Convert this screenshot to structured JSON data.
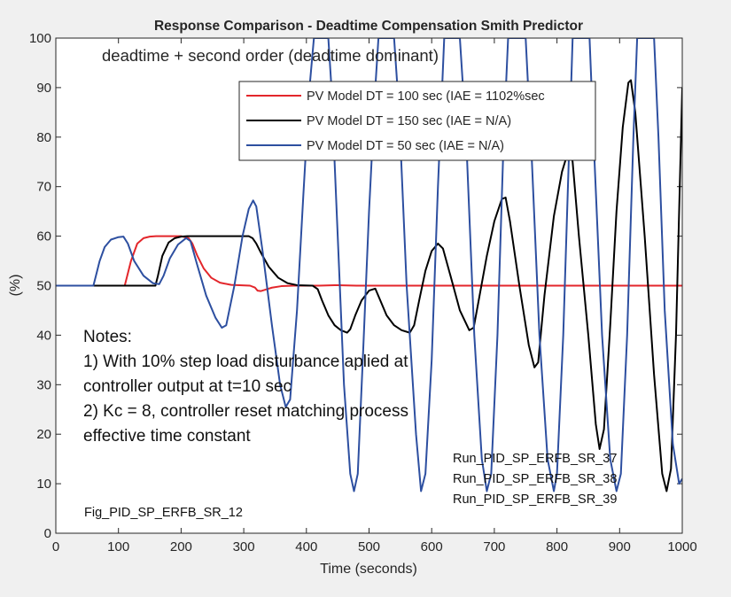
{
  "chart_data": {
    "type": "line",
    "title": "Response Comparison - Deadtime Compensation Smith Predictor",
    "subtitle": "deadtime + second order (deadtime dominant)",
    "xlabel": "Time (seconds)",
    "ylabel": "(%)",
    "xlim": [
      0,
      1000
    ],
    "ylim": [
      0,
      100
    ],
    "xticks": [
      0,
      100,
      200,
      300,
      400,
      500,
      600,
      700,
      800,
      900,
      1000
    ],
    "yticks": [
      0,
      10,
      20,
      30,
      40,
      50,
      60,
      70,
      80,
      90,
      100
    ],
    "legend_position": "top-right",
    "series": [
      {
        "name": "PV Model DT = 100 sec (IAE = 1102%sec",
        "color": "#e3262b",
        "points": [
          [
            0,
            50
          ],
          [
            110,
            50
          ],
          [
            114,
            52
          ],
          [
            120,
            55
          ],
          [
            130,
            58.5
          ],
          [
            140,
            59.6
          ],
          [
            150,
            59.9
          ],
          [
            160,
            60
          ],
          [
            200,
            60
          ],
          [
            212,
            59.6
          ],
          [
            218,
            58.5
          ],
          [
            226,
            56
          ],
          [
            236,
            53.5
          ],
          [
            248,
            51.6
          ],
          [
            262,
            50.6
          ],
          [
            280,
            50.15
          ],
          [
            310,
            50
          ],
          [
            318,
            49.6
          ],
          [
            322,
            49
          ],
          [
            327,
            48.9
          ],
          [
            335,
            49.2
          ],
          [
            345,
            49.6
          ],
          [
            360,
            49.9
          ],
          [
            380,
            50
          ],
          [
            420,
            50
          ],
          [
            445,
            50.1
          ],
          [
            480,
            50
          ],
          [
            1000,
            50
          ]
        ]
      },
      {
        "name": "PV Model DT = 150 sec (IAE = N/A)",
        "color": "#000000",
        "points": [
          [
            0,
            50
          ],
          [
            159,
            50
          ],
          [
            163,
            52
          ],
          [
            170,
            56
          ],
          [
            180,
            58.7
          ],
          [
            190,
            59.6
          ],
          [
            200,
            59.9
          ],
          [
            210,
            60
          ],
          [
            308,
            60
          ],
          [
            314,
            59.6
          ],
          [
            320,
            58.5
          ],
          [
            328,
            56.5
          ],
          [
            340,
            53.8
          ],
          [
            355,
            51.6
          ],
          [
            370,
            50.5
          ],
          [
            385,
            50.1
          ],
          [
            410,
            50
          ],
          [
            418,
            49.3
          ],
          [
            425,
            47
          ],
          [
            435,
            44
          ],
          [
            445,
            42
          ],
          [
            455,
            41
          ],
          [
            465,
            40.5
          ],
          [
            470,
            41.2
          ],
          [
            478,
            44
          ],
          [
            488,
            47
          ],
          [
            500,
            49
          ],
          [
            510,
            49.4
          ],
          [
            518,
            47
          ],
          [
            528,
            44
          ],
          [
            540,
            42
          ],
          [
            552,
            41
          ],
          [
            565,
            40.5
          ],
          [
            572,
            42
          ],
          [
            580,
            47
          ],
          [
            590,
            53
          ],
          [
            600,
            57
          ],
          [
            610,
            58.5
          ],
          [
            618,
            57.5
          ],
          [
            630,
            52
          ],
          [
            645,
            45
          ],
          [
            660,
            41
          ],
          [
            667,
            41.5
          ],
          [
            675,
            47
          ],
          [
            688,
            56
          ],
          [
            700,
            63
          ],
          [
            712,
            67.5
          ],
          [
            718,
            67.8
          ],
          [
            725,
            63
          ],
          [
            740,
            50
          ],
          [
            755,
            38
          ],
          [
            764,
            33.5
          ],
          [
            770,
            34.5
          ],
          [
            780,
            48
          ],
          [
            795,
            64
          ],
          [
            808,
            73
          ],
          [
            820,
            78
          ],
          [
            825,
            75
          ],
          [
            835,
            60
          ],
          [
            850,
            40
          ],
          [
            862,
            22
          ],
          [
            868,
            17
          ],
          [
            875,
            21
          ],
          [
            885,
            42
          ],
          [
            895,
            65
          ],
          [
            905,
            82
          ],
          [
            914,
            91
          ],
          [
            918,
            91.5
          ],
          [
            925,
            85
          ],
          [
            940,
            60
          ],
          [
            955,
            32
          ],
          [
            968,
            12
          ],
          [
            975,
            8.5
          ],
          [
            982,
            13
          ],
          [
            990,
            40
          ],
          [
            996,
            70
          ],
          [
            1000,
            90
          ]
        ]
      },
      {
        "name": "PV Model DT = 50 sec (IAE = N/A)",
        "color": "#2d4fa0",
        "points": [
          [
            0,
            50
          ],
          [
            60,
            50
          ],
          [
            64,
            52
          ],
          [
            70,
            55
          ],
          [
            78,
            57.8
          ],
          [
            88,
            59.3
          ],
          [
            100,
            59.8
          ],
          [
            108,
            59.9
          ],
          [
            115,
            58.5
          ],
          [
            125,
            55
          ],
          [
            140,
            52
          ],
          [
            155,
            50.5
          ],
          [
            165,
            50.3
          ],
          [
            172,
            52
          ],
          [
            182,
            55.5
          ],
          [
            195,
            58.3
          ],
          [
            208,
            59.6
          ],
          [
            215,
            59
          ],
          [
            225,
            54.5
          ],
          [
            240,
            48
          ],
          [
            255,
            43.5
          ],
          [
            265,
            41.5
          ],
          [
            272,
            42
          ],
          [
            285,
            50
          ],
          [
            298,
            60
          ],
          [
            308,
            65.5
          ],
          [
            315,
            67.2
          ],
          [
            320,
            66
          ],
          [
            330,
            57
          ],
          [
            345,
            42
          ],
          [
            358,
            30
          ],
          [
            367,
            25.5
          ],
          [
            374,
            27
          ],
          [
            385,
            45
          ],
          [
            395,
            68
          ],
          [
            405,
            90
          ],
          [
            412,
            100
          ],
          [
            435,
            100
          ],
          [
            440,
            90
          ],
          [
            450,
            60
          ],
          [
            460,
            30
          ],
          [
            470,
            12
          ],
          [
            476,
            8.5
          ],
          [
            482,
            12
          ],
          [
            490,
            35
          ],
          [
            500,
            65
          ],
          [
            510,
            90
          ],
          [
            515,
            100
          ],
          [
            540,
            100
          ],
          [
            548,
            85
          ],
          [
            560,
            50
          ],
          [
            575,
            20
          ],
          [
            583,
            8.5
          ],
          [
            590,
            12
          ],
          [
            600,
            35
          ],
          [
            610,
            70
          ],
          [
            620,
            100
          ],
          [
            645,
            100
          ],
          [
            655,
            80
          ],
          [
            668,
            40
          ],
          [
            680,
            15
          ],
          [
            688,
            8.5
          ],
          [
            695,
            12
          ],
          [
            705,
            40
          ],
          [
            715,
            80
          ],
          [
            722,
            100
          ],
          [
            750,
            100
          ],
          [
            760,
            75
          ],
          [
            772,
            40
          ],
          [
            785,
            15
          ],
          [
            795,
            8.5
          ],
          [
            800,
            12
          ],
          [
            810,
            40
          ],
          [
            820,
            80
          ],
          [
            825,
            100
          ],
          [
            852,
            100
          ],
          [
            860,
            75
          ],
          [
            872,
            40
          ],
          [
            885,
            15
          ],
          [
            895,
            8.5
          ],
          [
            902,
            12
          ],
          [
            912,
            40
          ],
          [
            922,
            80
          ],
          [
            928,
            100
          ],
          [
            955,
            100
          ],
          [
            962,
            80
          ],
          [
            972,
            45
          ],
          [
            985,
            18
          ],
          [
            995,
            10
          ],
          [
            1000,
            11
          ]
        ]
      }
    ],
    "annotations": {
      "notes": [
        "Notes:",
        "1) With 10% step load disturbance aplied at",
        "controller output at t=10 sec",
        "2) Kc = 8, controller reset matching process",
        "effective time constant"
      ],
      "runs": [
        "Run_PID_SP_ERFB_SR_37",
        "Run_PID_SP_ERFB_SR_38",
        "Run_PID_SP_ERFB_SR_39"
      ],
      "figure_label": "Fig_PID_SP_ERFB_SR_12"
    }
  }
}
